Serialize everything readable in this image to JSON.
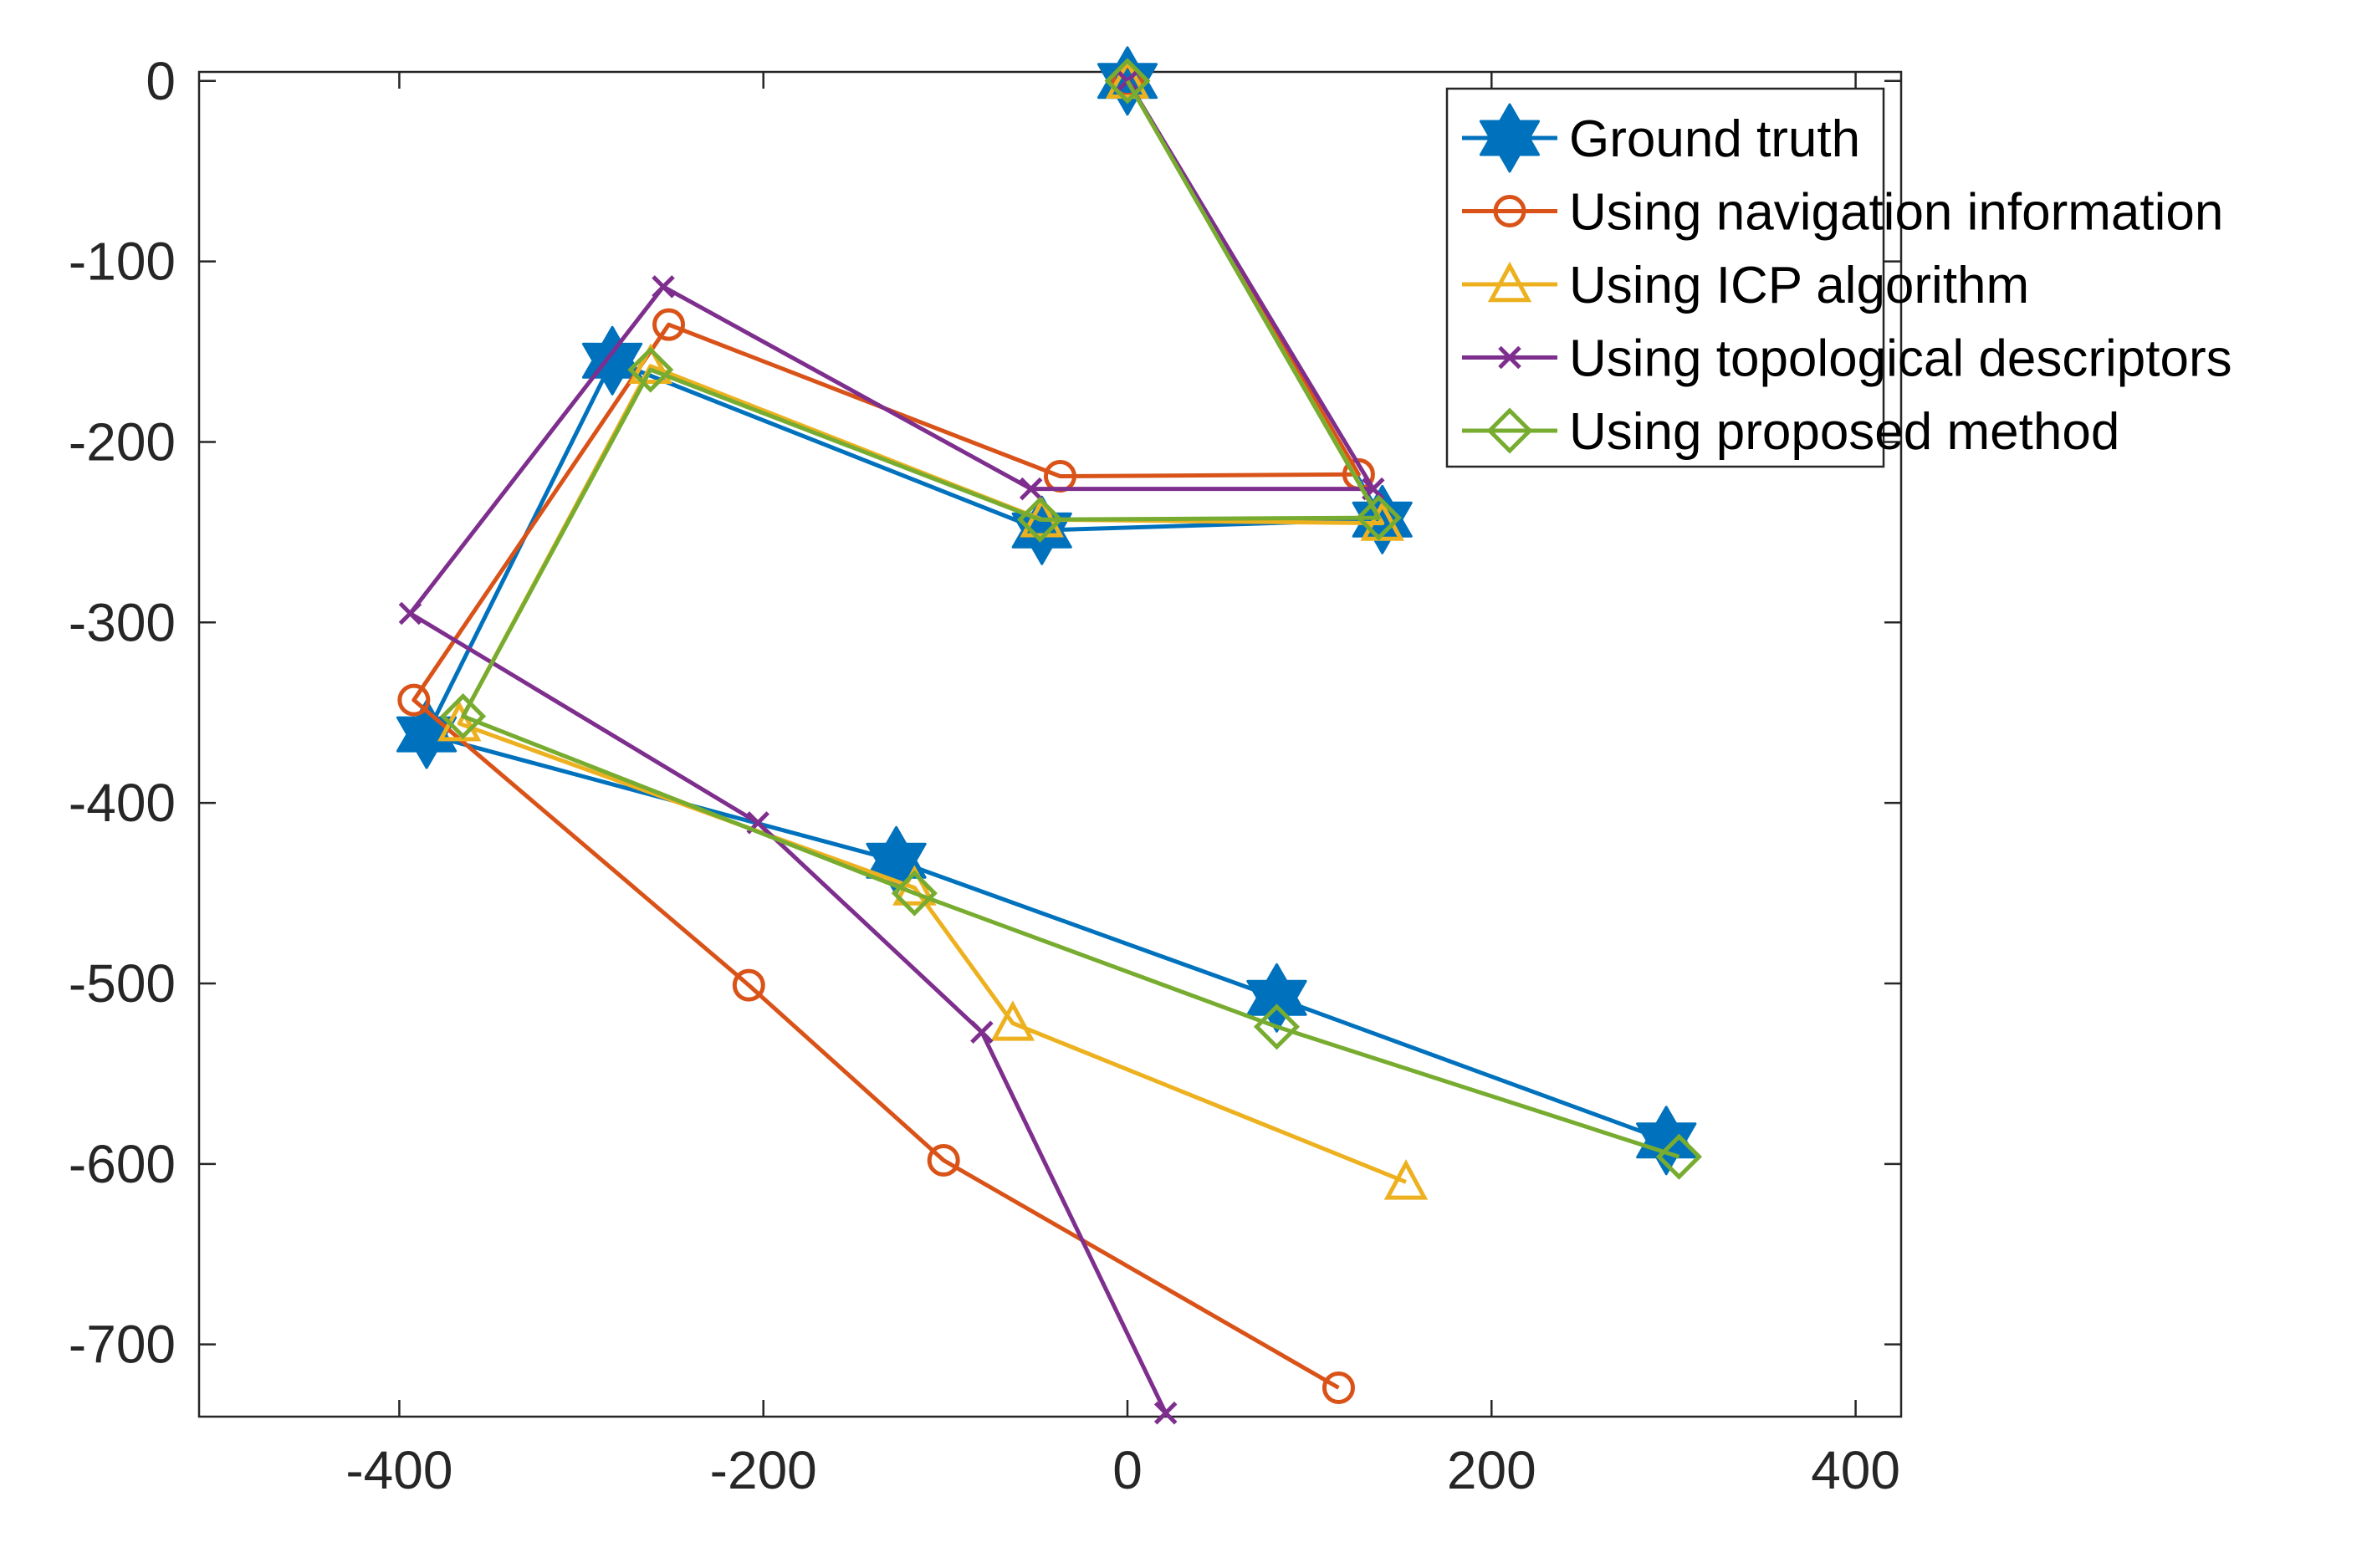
{
  "chart_data": {
    "type": "line",
    "title": "",
    "xlabel": "",
    "ylabel": "",
    "xlim": [
      -510,
      425
    ],
    "ylim": [
      -740,
      5
    ],
    "xticks": [
      -400,
      -200,
      0,
      200,
      400
    ],
    "yticks": [
      0,
      -100,
      -200,
      -300,
      -400,
      -500,
      -600,
      -700
    ],
    "xtick_labels": [
      "-400",
      "-200",
      "0",
      "200",
      "400"
    ],
    "ytick_labels": [
      "0",
      "-100",
      "-200",
      "-300",
      "-400",
      "-500",
      "-600",
      "-700"
    ],
    "legend_position": "top-right",
    "series": [
      {
        "name": "Ground truth",
        "color": "#0072BD",
        "marker": "hexagram",
        "x": [
          0,
          140,
          -47,
          -283,
          -385,
          -127,
          82,
          296
        ],
        "y": [
          0,
          -243,
          -249,
          -155,
          -362,
          -432,
          -508,
          -587
        ]
      },
      {
        "name": "Using navigation information",
        "color": "#D95319",
        "marker": "circle",
        "x": [
          0,
          127,
          -37,
          -252,
          -392,
          -208,
          -101,
          116
        ],
        "y": [
          0,
          -218,
          -219,
          -135,
          -343,
          -501,
          -598,
          -724
        ]
      },
      {
        "name": "Using ICP algorithm",
        "color": "#EDB120",
        "marker": "triangle",
        "x": [
          0,
          140,
          -47,
          -262,
          -367,
          -117,
          -63,
          153
        ],
        "y": [
          0,
          -245,
          -243,
          -158,
          -356,
          -447,
          -522,
          -610
        ]
      },
      {
        "name": "Using topological descriptors",
        "color": "#7E2F8E",
        "marker": "x",
        "x": [
          0,
          135,
          -53,
          -255,
          -394,
          -203,
          -80,
          21
        ],
        "y": [
          0,
          -226,
          -226,
          -114,
          -295,
          -411,
          -527,
          -738
        ]
      },
      {
        "name": "Using proposed method",
        "color": "#77AC30",
        "marker": "diamond",
        "x": [
          0,
          138,
          -48,
          -262,
          -365,
          -117,
          82,
          303
        ],
        "y": [
          0,
          -242,
          -243,
          -160,
          -352,
          -450,
          -524,
          -596
        ]
      }
    ]
  }
}
